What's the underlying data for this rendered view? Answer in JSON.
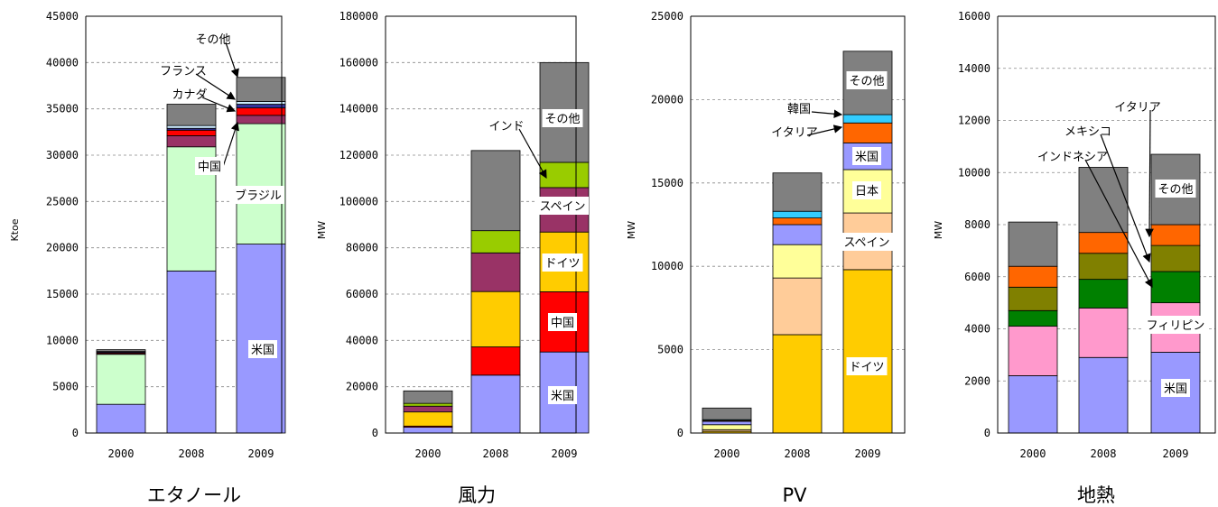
{
  "chart_data": [
    {
      "type": "bar",
      "title": "エタノール",
      "ylabel": "Ktoe",
      "ylim": [
        0,
        45000
      ],
      "yticks": [
        0,
        5000,
        10000,
        15000,
        20000,
        25000,
        30000,
        35000,
        40000,
        45000
      ],
      "categories": [
        "2000",
        "2008",
        "2009"
      ],
      "series": [
        {
          "name": "米国",
          "color": "#9999FF",
          "values": [
            3100,
            17500,
            20400
          ]
        },
        {
          "name": "ブラジル",
          "color": "#CCFFCC",
          "values": [
            5400,
            13400,
            13000
          ]
        },
        {
          "name": "中国",
          "color": "#993366",
          "values": [
            100,
            1200,
            900
          ]
        },
        {
          "name": "カナダ",
          "color": "#FF0000",
          "values": [
            100,
            600,
            800
          ]
        },
        {
          "name": "フランス",
          "color": "#333399",
          "values": [
            100,
            200,
            400
          ]
        },
        {
          "name": "",
          "color": "#CCECFF",
          "values": [
            0,
            300,
            300
          ]
        },
        {
          "name": "その他",
          "color": "#808080",
          "values": [
            200,
            2300,
            2600
          ]
        }
      ],
      "labels": [
        {
          "text": "米国",
          "series": "米国",
          "boxed": true
        },
        {
          "text": "ブラジル",
          "series": "ブラジル",
          "boxed": true
        },
        {
          "text": "中国",
          "series": "中国",
          "boxed": true
        },
        {
          "text": "カナダ",
          "series": "カナダ",
          "boxed": false
        },
        {
          "text": "フランス",
          "series": "フランス",
          "boxed": false
        },
        {
          "text": "その他",
          "series": "その他",
          "boxed": false
        }
      ]
    },
    {
      "type": "bar",
      "title": "風力",
      "ylabel": "MW",
      "ylim": [
        0,
        180000
      ],
      "yticks": [
        0,
        20000,
        40000,
        60000,
        80000,
        100000,
        120000,
        140000,
        160000,
        180000
      ],
      "categories": [
        "2000",
        "2008",
        "2009"
      ],
      "series": [
        {
          "name": "米国",
          "color": "#9999FF",
          "values": [
            2500,
            25000,
            35000
          ]
        },
        {
          "name": "中国",
          "color": "#FF0000",
          "values": [
            500,
            12200,
            26000
          ]
        },
        {
          "name": "ドイツ",
          "color": "#FFCC00",
          "values": [
            6100,
            23900,
            25800
          ]
        },
        {
          "name": "スペイン",
          "color": "#993366",
          "values": [
            2500,
            16700,
            19200
          ]
        },
        {
          "name": "インド",
          "color": "#99CC00",
          "values": [
            1200,
            9600,
            10900
          ]
        },
        {
          "name": "その他",
          "color": "#808080",
          "values": [
            5400,
            34600,
            43100
          ]
        }
      ],
      "labels": [
        {
          "text": "米国",
          "series": "米国",
          "boxed": true
        },
        {
          "text": "中国",
          "series": "中国",
          "boxed": true
        },
        {
          "text": "ドイツ",
          "series": "ドイツ",
          "boxed": true
        },
        {
          "text": "スペイン",
          "series": "スペイン",
          "boxed": true
        },
        {
          "text": "インド",
          "series": "インド",
          "boxed": false
        },
        {
          "text": "その他",
          "series": "その他",
          "boxed": true
        }
      ]
    },
    {
      "type": "bar",
      "title": "PV",
      "ylabel": "MW",
      "ylim": [
        0,
        25000
      ],
      "yticks": [
        0,
        5000,
        10000,
        15000,
        20000,
        25000
      ],
      "categories": [
        "2000",
        "2008",
        "2009"
      ],
      "series": [
        {
          "name": "ドイツ",
          "color": "#FFCC00",
          "values": [
            100,
            5900,
            9800
          ]
        },
        {
          "name": "スペイン",
          "color": "#FFCC99",
          "values": [
            100,
            3400,
            3400
          ]
        },
        {
          "name": "日本",
          "color": "#FFFF99",
          "values": [
            300,
            2000,
            2600
          ]
        },
        {
          "name": "米国",
          "color": "#9999FF",
          "values": [
            200,
            1200,
            1600
          ]
        },
        {
          "name": "イタリア",
          "color": "#FF6600",
          "values": [
            50,
            400,
            1200
          ]
        },
        {
          "name": "韓国",
          "color": "#33CCFF",
          "values": [
            50,
            400,
            500
          ]
        },
        {
          "name": "その他",
          "color": "#808080",
          "values": [
            700,
            2300,
            3800
          ]
        }
      ],
      "labels": [
        {
          "text": "ドイツ",
          "series": "ドイツ",
          "boxed": true
        },
        {
          "text": "スペイン",
          "series": "スペイン",
          "boxed": true
        },
        {
          "text": "日本",
          "series": "日本",
          "boxed": true
        },
        {
          "text": "米国",
          "series": "米国",
          "boxed": true
        },
        {
          "text": "イタリア",
          "series": "イタリア",
          "boxed": false
        },
        {
          "text": "韓国",
          "series": "韓国",
          "boxed": false
        },
        {
          "text": "その他",
          "series": "その他",
          "boxed": true
        }
      ]
    },
    {
      "type": "bar",
      "title": "地熱",
      "ylabel": "MW",
      "ylim": [
        0,
        16000
      ],
      "yticks": [
        0,
        2000,
        4000,
        6000,
        8000,
        10000,
        12000,
        14000,
        16000
      ],
      "categories": [
        "2000",
        "2008",
        "2009"
      ],
      "series": [
        {
          "name": "米国",
          "color": "#9999FF",
          "values": [
            2200,
            2900,
            3100
          ]
        },
        {
          "name": "フィリピン",
          "color": "#FF99CC",
          "values": [
            1900,
            1900,
            1900
          ]
        },
        {
          "name": "インドネシア",
          "color": "#008000",
          "values": [
            600,
            1100,
            1200
          ]
        },
        {
          "name": "メキシコ",
          "color": "#808000",
          "values": [
            900,
            1000,
            1000
          ]
        },
        {
          "name": "イタリア",
          "color": "#FF6600",
          "values": [
            800,
            800,
            800
          ]
        },
        {
          "name": "その他",
          "color": "#808080",
          "values": [
            1700,
            2500,
            2700
          ]
        }
      ],
      "labels": [
        {
          "text": "米国",
          "series": "米国",
          "boxed": true
        },
        {
          "text": "フィリピン",
          "series": "フィリピン",
          "boxed": true
        },
        {
          "text": "インドネシア",
          "series": "インドネシア",
          "boxed": false
        },
        {
          "text": "メキシコ",
          "series": "メキシコ",
          "boxed": false
        },
        {
          "text": "イタリア",
          "series": "イタリア",
          "boxed": false
        },
        {
          "text": "その他",
          "series": "その他",
          "boxed": true
        }
      ]
    }
  ]
}
